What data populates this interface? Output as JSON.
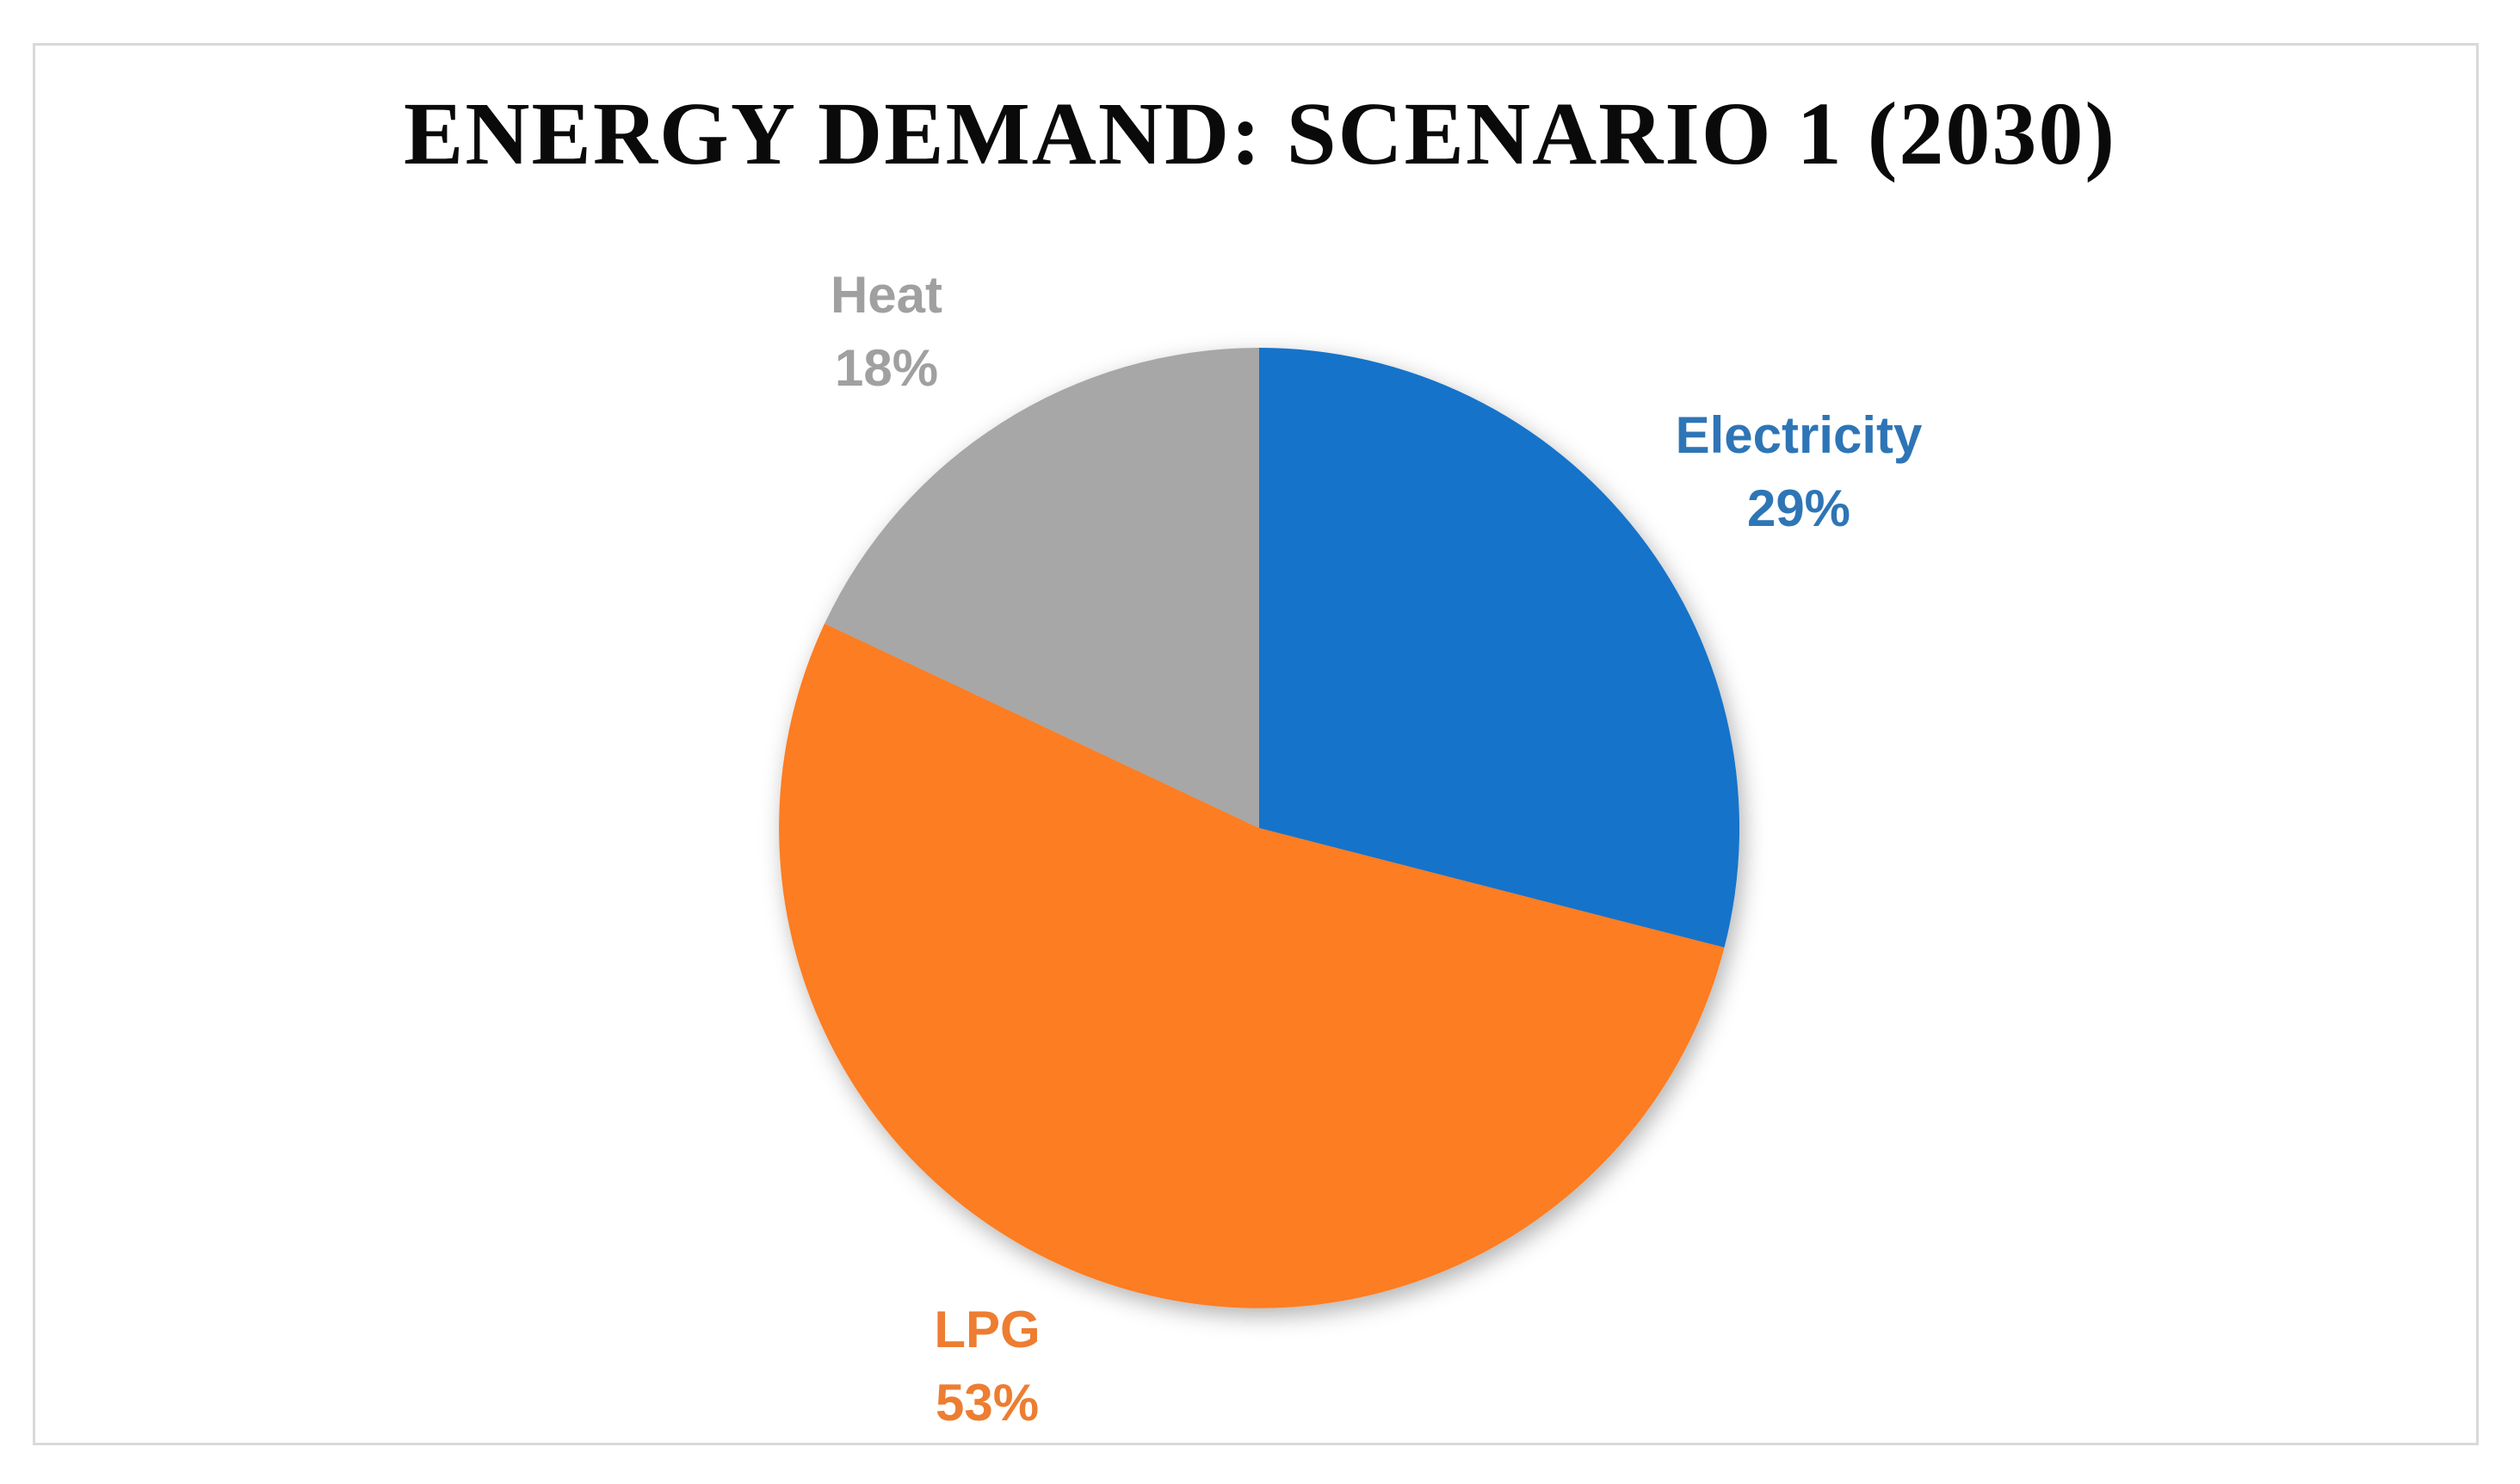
{
  "figure": {
    "background_color": "#ffffff",
    "border_color": "#d9d9d9"
  },
  "chart_data": {
    "type": "pie",
    "title": "ENERGY DEMAND: SCENARIO 1 (2030)",
    "categories": [
      "Electricity",
      "LPG",
      "Heat"
    ],
    "values": [
      29,
      53,
      18
    ],
    "unit": "percent",
    "start_angle": "12 o'clock, clockwise",
    "legend": "none",
    "label_style": "category name and percentage outside slice, colored to match slice",
    "slices": [
      {
        "label": "Electricity",
        "value": 29,
        "pct_text": "29%",
        "slice_color": "#1573CA",
        "label_color": "#2E75B6"
      },
      {
        "label": "LPG",
        "value": 53,
        "pct_text": "53%",
        "slice_color": "#FC7D22",
        "label_color": "#ED7D31"
      },
      {
        "label": "Heat",
        "value": 18,
        "pct_text": "18%",
        "slice_color": "#A7A7A7",
        "label_color": "#A0A0A0"
      }
    ]
  }
}
